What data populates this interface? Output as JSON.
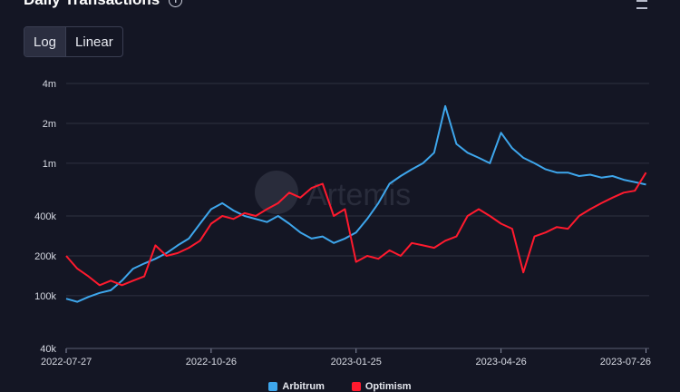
{
  "header": {
    "title": "Daily Transactions"
  },
  "toggle": {
    "log_label": "Log",
    "linear_label": "Linear",
    "selected": "Log"
  },
  "watermark": {
    "text": "Artemis"
  },
  "colors": {
    "arbitrum": "#3ea6ec",
    "optimism": "#ff1a2e",
    "grid": "#2e3140",
    "background": "#141624"
  },
  "chart_data": {
    "type": "line",
    "title": "Daily Transactions",
    "yscale": "log",
    "ylim": [
      40000,
      4000000
    ],
    "y_ticks": [
      {
        "value": 40000,
        "label": "40k"
      },
      {
        "value": 100000,
        "label": "100k"
      },
      {
        "value": 200000,
        "label": "200k"
      },
      {
        "value": 400000,
        "label": "400k"
      },
      {
        "value": 1000000,
        "label": "1m"
      },
      {
        "value": 2000000,
        "label": "2m"
      },
      {
        "value": 4000000,
        "label": "4m"
      }
    ],
    "xlim": [
      "2022-07-27",
      "2023-07-28"
    ],
    "x_ticks": [
      "2022-07-27",
      "2022-10-26",
      "2023-01-25",
      "2023-04-26",
      "2023-07-26"
    ],
    "grid": true,
    "legend": "bottom-center",
    "series": [
      {
        "name": "Arbitrum",
        "color": "#3ea6ec",
        "points": [
          [
            "2022-07-27",
            95000
          ],
          [
            "2022-08-03",
            90000
          ],
          [
            "2022-08-10",
            98000
          ],
          [
            "2022-08-17",
            105000
          ],
          [
            "2022-08-24",
            110000
          ],
          [
            "2022-08-31",
            130000
          ],
          [
            "2022-09-07",
            160000
          ],
          [
            "2022-09-14",
            175000
          ],
          [
            "2022-09-21",
            190000
          ],
          [
            "2022-09-28",
            210000
          ],
          [
            "2022-10-05",
            240000
          ],
          [
            "2022-10-12",
            270000
          ],
          [
            "2022-10-19",
            350000
          ],
          [
            "2022-10-26",
            450000
          ],
          [
            "2022-11-02",
            500000
          ],
          [
            "2022-11-09",
            440000
          ],
          [
            "2022-11-16",
            400000
          ],
          [
            "2022-11-23",
            380000
          ],
          [
            "2022-11-30",
            360000
          ],
          [
            "2022-12-07",
            400000
          ],
          [
            "2022-12-14",
            350000
          ],
          [
            "2022-12-21",
            300000
          ],
          [
            "2022-12-28",
            270000
          ],
          [
            "2023-01-04",
            280000
          ],
          [
            "2023-01-11",
            250000
          ],
          [
            "2023-01-18",
            270000
          ],
          [
            "2023-01-25",
            300000
          ],
          [
            "2023-02-01",
            380000
          ],
          [
            "2023-02-08",
            500000
          ],
          [
            "2023-02-15",
            700000
          ],
          [
            "2023-02-22",
            800000
          ],
          [
            "2023-03-01",
            900000
          ],
          [
            "2023-03-08",
            1000000
          ],
          [
            "2023-03-15",
            1200000
          ],
          [
            "2023-03-22",
            2700000
          ],
          [
            "2023-03-29",
            1400000
          ],
          [
            "2023-04-05",
            1200000
          ],
          [
            "2023-04-12",
            1100000
          ],
          [
            "2023-04-19",
            1000000
          ],
          [
            "2023-04-26",
            1700000
          ],
          [
            "2023-05-03",
            1300000
          ],
          [
            "2023-05-10",
            1100000
          ],
          [
            "2023-05-17",
            1000000
          ],
          [
            "2023-05-24",
            900000
          ],
          [
            "2023-05-31",
            850000
          ],
          [
            "2023-06-07",
            850000
          ],
          [
            "2023-06-14",
            800000
          ],
          [
            "2023-06-21",
            820000
          ],
          [
            "2023-06-28",
            780000
          ],
          [
            "2023-07-05",
            800000
          ],
          [
            "2023-07-12",
            750000
          ],
          [
            "2023-07-19",
            720000
          ],
          [
            "2023-07-26",
            690000
          ]
        ]
      },
      {
        "name": "Optimism",
        "color": "#ff1a2e",
        "points": [
          [
            "2022-07-27",
            200000
          ],
          [
            "2022-08-03",
            160000
          ],
          [
            "2022-08-10",
            140000
          ],
          [
            "2022-08-17",
            120000
          ],
          [
            "2022-08-24",
            130000
          ],
          [
            "2022-08-31",
            120000
          ],
          [
            "2022-09-07",
            130000
          ],
          [
            "2022-09-14",
            140000
          ],
          [
            "2022-09-21",
            240000
          ],
          [
            "2022-09-28",
            200000
          ],
          [
            "2022-10-05",
            210000
          ],
          [
            "2022-10-12",
            230000
          ],
          [
            "2022-10-19",
            260000
          ],
          [
            "2022-10-26",
            350000
          ],
          [
            "2022-11-02",
            400000
          ],
          [
            "2022-11-09",
            380000
          ],
          [
            "2022-11-16",
            420000
          ],
          [
            "2022-11-23",
            400000
          ],
          [
            "2022-11-30",
            450000
          ],
          [
            "2022-12-07",
            500000
          ],
          [
            "2022-12-14",
            600000
          ],
          [
            "2022-12-21",
            550000
          ],
          [
            "2022-12-28",
            650000
          ],
          [
            "2023-01-04",
            700000
          ],
          [
            "2023-01-11",
            400000
          ],
          [
            "2023-01-18",
            450000
          ],
          [
            "2023-01-25",
            180000
          ],
          [
            "2023-02-01",
            200000
          ],
          [
            "2023-02-08",
            190000
          ],
          [
            "2023-02-15",
            220000
          ],
          [
            "2023-02-22",
            200000
          ],
          [
            "2023-03-01",
            250000
          ],
          [
            "2023-03-08",
            240000
          ],
          [
            "2023-03-15",
            230000
          ],
          [
            "2023-03-22",
            260000
          ],
          [
            "2023-03-29",
            280000
          ],
          [
            "2023-04-05",
            400000
          ],
          [
            "2023-04-12",
            450000
          ],
          [
            "2023-04-19",
            400000
          ],
          [
            "2023-04-26",
            350000
          ],
          [
            "2023-05-03",
            320000
          ],
          [
            "2023-05-10",
            150000
          ],
          [
            "2023-05-17",
            280000
          ],
          [
            "2023-05-24",
            300000
          ],
          [
            "2023-05-31",
            330000
          ],
          [
            "2023-06-07",
            320000
          ],
          [
            "2023-06-14",
            400000
          ],
          [
            "2023-06-21",
            450000
          ],
          [
            "2023-06-28",
            500000
          ],
          [
            "2023-07-05",
            550000
          ],
          [
            "2023-07-12",
            600000
          ],
          [
            "2023-07-19",
            620000
          ],
          [
            "2023-07-26",
            850000
          ]
        ]
      }
    ]
  }
}
